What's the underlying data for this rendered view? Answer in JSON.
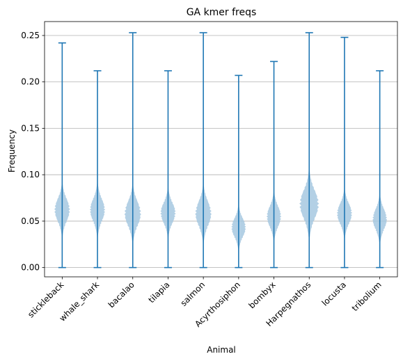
{
  "chart_data": {
    "type": "violin",
    "title": "GA kmer freqs",
    "xlabel": "Animal",
    "ylabel": "Frequency",
    "ylim": [
      -0.01,
      0.265
    ],
    "yticks": [
      0.0,
      0.05,
      0.1,
      0.15,
      0.2,
      0.25
    ],
    "ytick_labels": [
      "0.00",
      "0.05",
      "0.10",
      "0.15",
      "0.20",
      "0.25"
    ],
    "grid": "y",
    "violin_color": "#a6c8e0",
    "line_color": "#1f77b4",
    "categories": [
      "stickleback",
      "whale_shark",
      "bacalao",
      "tilapia",
      "salmon",
      "Acyrthosiphon",
      "bombyx",
      "Harpegnathos",
      "locusta",
      "tribolium"
    ],
    "series": [
      {
        "min": 0.0,
        "max": 0.242,
        "center": 0.062,
        "spread": 0.012,
        "lo": 0.028,
        "hi": 0.098,
        "width": 0.45
      },
      {
        "min": 0.0,
        "max": 0.212,
        "center": 0.062,
        "spread": 0.012,
        "lo": 0.033,
        "hi": 0.092,
        "width": 0.44
      },
      {
        "min": 0.0,
        "max": 0.253,
        "center": 0.058,
        "spread": 0.013,
        "lo": 0.022,
        "hi": 0.1,
        "width": 0.48
      },
      {
        "min": 0.0,
        "max": 0.212,
        "center": 0.059,
        "spread": 0.011,
        "lo": 0.028,
        "hi": 0.088,
        "width": 0.44
      },
      {
        "min": 0.0,
        "max": 0.253,
        "center": 0.058,
        "spread": 0.013,
        "lo": 0.024,
        "hi": 0.098,
        "width": 0.47
      },
      {
        "min": 0.0,
        "max": 0.207,
        "center": 0.043,
        "spread": 0.01,
        "lo": 0.016,
        "hi": 0.072,
        "width": 0.42
      },
      {
        "min": 0.0,
        "max": 0.222,
        "center": 0.055,
        "spread": 0.011,
        "lo": 0.025,
        "hi": 0.085,
        "width": 0.42
      },
      {
        "min": 0.0,
        "max": 0.253,
        "center": 0.068,
        "spread": 0.015,
        "lo": 0.026,
        "hi": 0.112,
        "width": 0.56
      },
      {
        "min": 0.0,
        "max": 0.248,
        "center": 0.058,
        "spread": 0.011,
        "lo": 0.03,
        "hi": 0.088,
        "width": 0.44
      },
      {
        "min": 0.0,
        "max": 0.212,
        "center": 0.052,
        "spread": 0.011,
        "lo": 0.026,
        "hi": 0.082,
        "width": 0.42
      }
    ]
  }
}
